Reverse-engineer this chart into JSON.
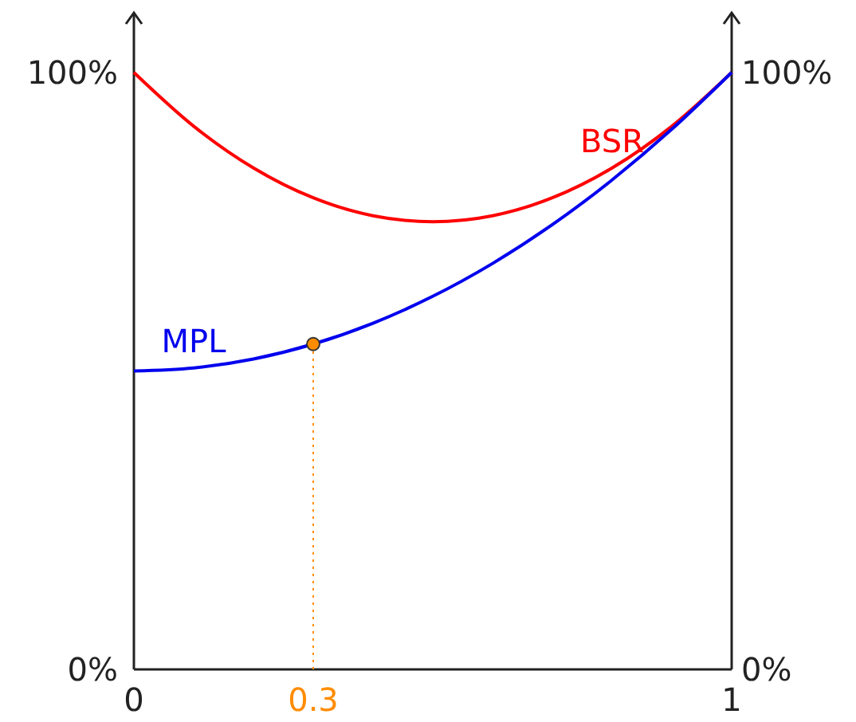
{
  "chart_data": {
    "type": "line",
    "x": [
      0,
      0.1,
      0.2,
      0.3,
      0.4,
      0.5,
      0.6,
      0.7,
      0.8,
      0.9,
      1
    ],
    "series": [
      {
        "name": "BSR",
        "color": "#ff0000",
        "values": [
          100,
          91,
          84,
          79,
          76,
          75,
          76,
          79,
          84,
          91,
          100
        ]
      },
      {
        "name": "MPL",
        "color": "#0000ee",
        "values": [
          50,
          50.5,
          52,
          54.5,
          58,
          62.5,
          68,
          74.5,
          82,
          90.5,
          100
        ]
      },
      {
        "type": "scatter",
        "marker": "circle",
        "color": "#ff8c00",
        "x": [
          0.3
        ],
        "values": [
          54.5
        ]
      }
    ],
    "xlim": [
      0,
      1
    ],
    "xticks": [
      0,
      1
    ],
    "ylim": [
      0,
      110
    ],
    "yticks": [
      {
        "value": 0,
        "label": "0%"
      },
      {
        "value": 100,
        "label": "100%"
      }
    ],
    "y2lim": [
      0,
      110
    ],
    "y2ticks": [
      {
        "value": 0,
        "label": "0%"
      },
      {
        "value": 100,
        "label": "100%"
      }
    ],
    "ref_lines": [
      {
        "axis": "x",
        "value": 0.3,
        "label": "0.3",
        "color": "#ff8c00",
        "line_style": "dotted"
      }
    ],
    "grid": false,
    "line_style": "solid"
  }
}
